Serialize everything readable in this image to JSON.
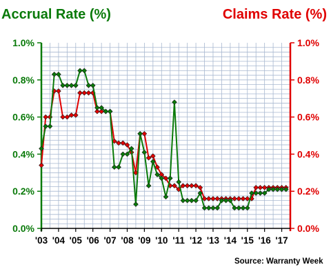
{
  "chart_data": {
    "type": "line",
    "left_axis_title": "Accrual Rate (%)",
    "right_axis_title": "Claims Rate (%)",
    "source": "Source: Warranty Week",
    "x_tick_labels": [
      "'03",
      "'04",
      "'05",
      "'06",
      "'07",
      "'08",
      "'09",
      "'10",
      "'11",
      "'12",
      "'13",
      "'14",
      "'15",
      "'16",
      "'17"
    ],
    "x_range": [
      2003.0,
      2017.5
    ],
    "y_left_ticks": [
      "0.0%",
      "0.2%",
      "0.4%",
      "0.6%",
      "0.8%",
      "1.0%"
    ],
    "y_right_ticks": [
      "0.0%",
      "0.2%",
      "0.4%",
      "0.6%",
      "0.8%",
      "1.0%"
    ],
    "y_range": [
      0.0,
      1.0
    ],
    "grid": true,
    "colors": {
      "accrual": "#0a7a0a",
      "claims": "#e00000",
      "grid": "#a8b8d0"
    },
    "series": [
      {
        "name": "Accrual Rate (%)",
        "axis": "left",
        "x": [
          2003.0,
          2003.25,
          2003.5,
          2003.75,
          2004.0,
          2004.25,
          2004.5,
          2004.75,
          2005.0,
          2005.25,
          2005.5,
          2005.75,
          2006.0,
          2006.25,
          2006.5,
          2006.75,
          2007.0,
          2007.25,
          2007.5,
          2007.75,
          2008.0,
          2008.25,
          2008.5,
          2008.75,
          2009.0,
          2009.25,
          2009.5,
          2009.75,
          2010.0,
          2010.25,
          2010.5,
          2010.75,
          2011.0,
          2011.25,
          2011.5,
          2011.75,
          2012.0,
          2012.25,
          2012.5,
          2012.75,
          2013.0,
          2013.25,
          2013.5,
          2013.75,
          2014.0,
          2014.25,
          2014.5,
          2014.75,
          2015.0,
          2015.25,
          2015.5,
          2015.75,
          2016.0,
          2016.25,
          2016.5,
          2016.75,
          2017.0,
          2017.25
        ],
        "values": [
          0.43,
          0.55,
          0.55,
          0.83,
          0.83,
          0.77,
          0.77,
          0.77,
          0.77,
          0.85,
          0.85,
          0.77,
          0.77,
          0.65,
          0.65,
          0.63,
          0.63,
          0.33,
          0.33,
          0.4,
          0.4,
          0.43,
          0.13,
          0.51,
          0.41,
          0.23,
          0.36,
          0.29,
          0.27,
          0.17,
          0.27,
          0.68,
          0.25,
          0.15,
          0.15,
          0.15,
          0.15,
          0.19,
          0.11,
          0.11,
          0.11,
          0.11,
          0.15,
          0.15,
          0.15,
          0.11,
          0.11,
          0.11,
          0.11,
          0.19,
          0.19,
          0.19,
          0.19,
          0.21,
          0.21,
          0.21,
          0.21,
          0.21
        ]
      },
      {
        "name": "Claims Rate (%)",
        "axis": "right",
        "x": [
          2003.0,
          2003.25,
          2003.5,
          2003.75,
          2004.0,
          2004.25,
          2004.5,
          2004.75,
          2005.0,
          2005.25,
          2005.5,
          2005.75,
          2006.0,
          2006.25,
          2006.5,
          2006.75,
          2007.0,
          2007.25,
          2007.5,
          2007.75,
          2008.0,
          2008.25,
          2008.5,
          2008.75,
          2009.0,
          2009.25,
          2009.5,
          2009.75,
          2010.0,
          2010.25,
          2010.5,
          2010.75,
          2011.0,
          2011.25,
          2011.5,
          2011.75,
          2012.0,
          2012.25,
          2012.5,
          2012.75,
          2013.0,
          2013.25,
          2013.5,
          2013.75,
          2014.0,
          2014.25,
          2014.5,
          2014.75,
          2015.0,
          2015.25,
          2015.5,
          2015.75,
          2016.0,
          2016.25,
          2016.5,
          2016.75,
          2017.0,
          2017.25
        ],
        "values": [
          0.34,
          0.6,
          0.6,
          0.74,
          0.74,
          0.6,
          0.6,
          0.61,
          0.61,
          0.73,
          0.73,
          0.73,
          0.73,
          0.63,
          0.63,
          0.63,
          0.63,
          0.47,
          0.46,
          0.46,
          0.45,
          0.41,
          0.3,
          0.51,
          0.51,
          0.38,
          0.39,
          0.33,
          0.29,
          0.27,
          0.23,
          0.23,
          0.21,
          0.23,
          0.23,
          0.23,
          0.23,
          0.22,
          0.16,
          0.16,
          0.16,
          0.16,
          0.16,
          0.16,
          0.16,
          0.16,
          0.16,
          0.16,
          0.16,
          0.16,
          0.22,
          0.22,
          0.22,
          0.22,
          0.22,
          0.22,
          0.22,
          0.22
        ]
      }
    ]
  }
}
